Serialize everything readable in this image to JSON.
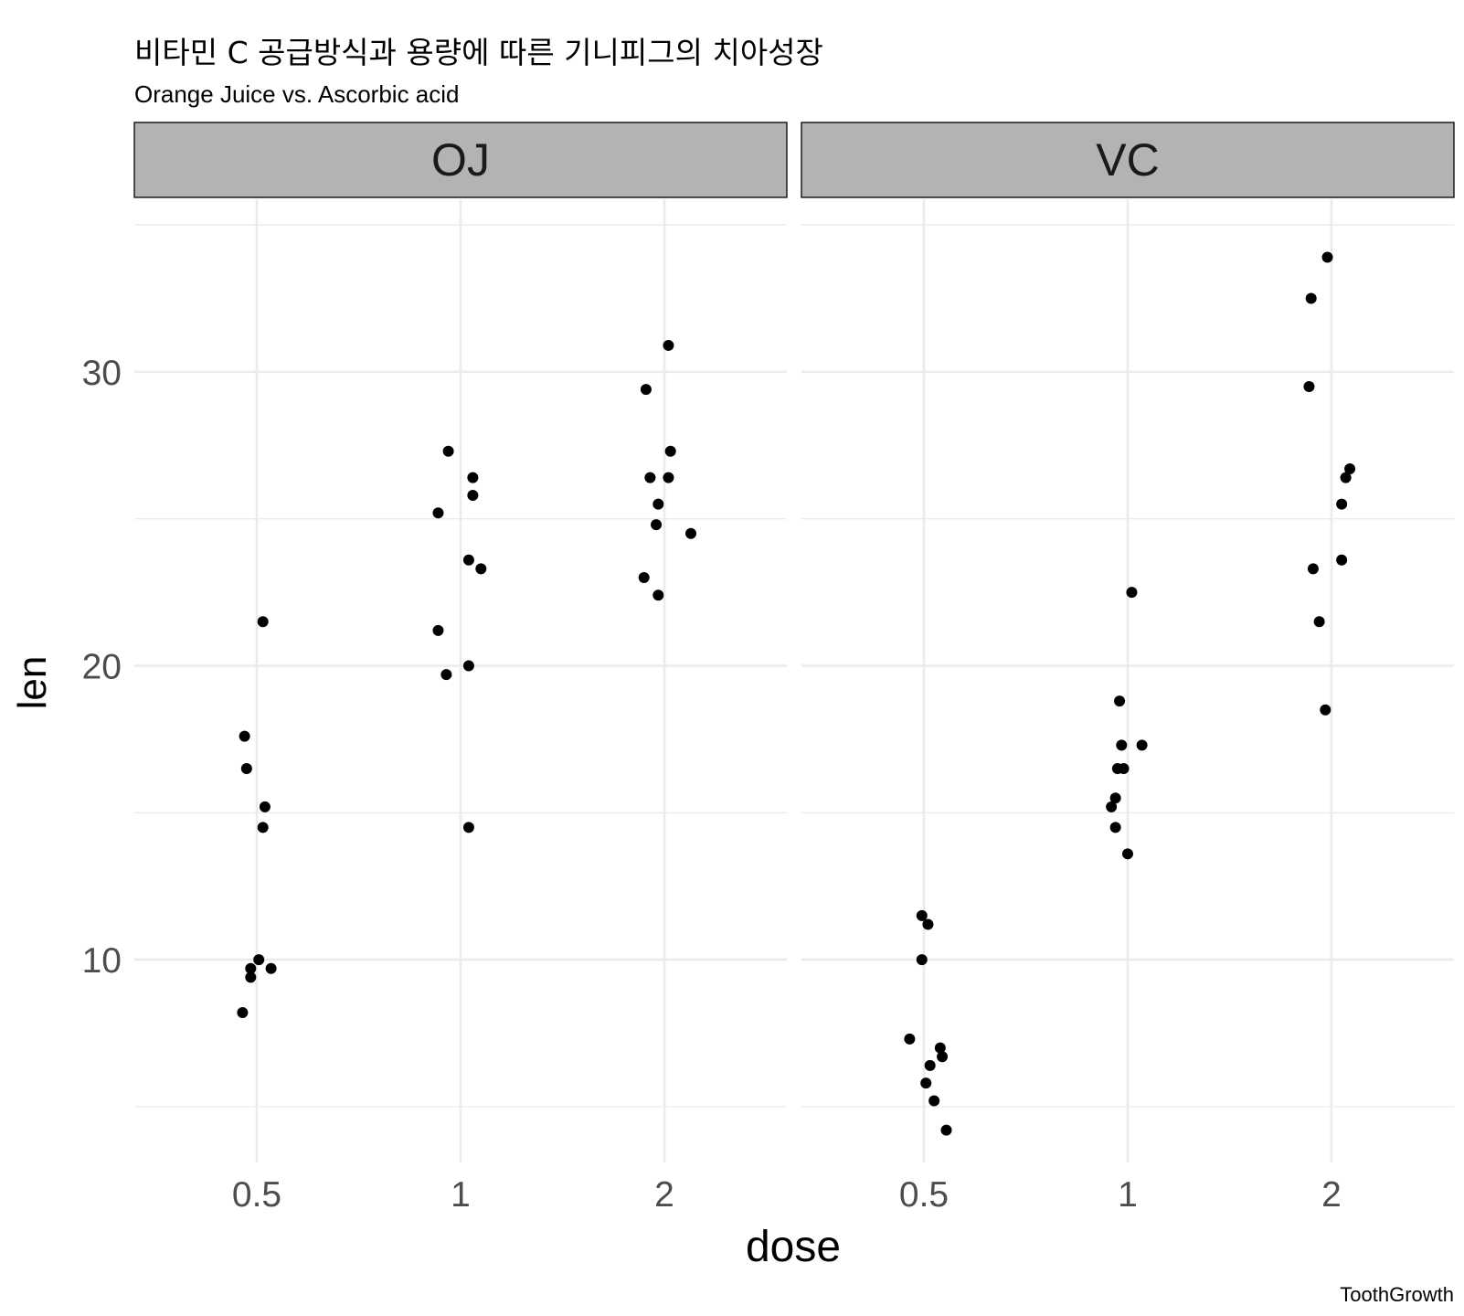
{
  "chart_data": {
    "type": "scatter",
    "title": "비타민 C 공급방식과 용량에 따른 기니피그의 치아성장",
    "subtitle": "Orange Juice vs. Ascorbic acid",
    "caption": "ToothGrowth",
    "xlabel": "dose",
    "ylabel": "len",
    "x_categories": [
      "0.5",
      "1",
      "2"
    ],
    "y_ticks": [
      10,
      20,
      30
    ],
    "ylim": [
      3.1,
      35.5
    ],
    "grid": true,
    "legend": "none",
    "panel_background": "#ffffff",
    "strip_fill": "#b3b3b3",
    "point_color": "#000000",
    "grid_color": "#ebebeb",
    "facets": [
      {
        "label": "OJ",
        "points": [
          {
            "x": 0.43,
            "y": 8.2
          },
          {
            "x": 0.44,
            "y": 17.6
          },
          {
            "x": 0.45,
            "y": 16.5
          },
          {
            "x": 0.47,
            "y": 9.7
          },
          {
            "x": 0.47,
            "y": 9.4
          },
          {
            "x": 0.51,
            "y": 10.0
          },
          {
            "x": 0.53,
            "y": 14.5
          },
          {
            "x": 0.53,
            "y": 21.5
          },
          {
            "x": 0.54,
            "y": 15.2
          },
          {
            "x": 0.57,
            "y": 9.7
          },
          {
            "x": 0.89,
            "y": 25.2
          },
          {
            "x": 0.89,
            "y": 21.2
          },
          {
            "x": 0.93,
            "y": 19.7
          },
          {
            "x": 0.94,
            "y": 27.3
          },
          {
            "x": 1.04,
            "y": 23.6
          },
          {
            "x": 1.04,
            "y": 20.0
          },
          {
            "x": 1.04,
            "y": 14.5
          },
          {
            "x": 1.06,
            "y": 26.4
          },
          {
            "x": 1.06,
            "y": 25.8
          },
          {
            "x": 1.1,
            "y": 23.3
          },
          {
            "x": 1.9,
            "y": 23.0
          },
          {
            "x": 1.91,
            "y": 29.4
          },
          {
            "x": 1.93,
            "y": 26.4
          },
          {
            "x": 1.96,
            "y": 24.8
          },
          {
            "x": 1.97,
            "y": 22.4
          },
          {
            "x": 1.97,
            "y": 25.5
          },
          {
            "x": 2.02,
            "y": 26.4
          },
          {
            "x": 2.02,
            "y": 30.9
          },
          {
            "x": 2.03,
            "y": 27.3
          },
          {
            "x": 2.13,
            "y": 24.5
          }
        ]
      },
      {
        "label": "VC",
        "points": [
          {
            "x": 0.43,
            "y": 7.3
          },
          {
            "x": 0.49,
            "y": 11.5
          },
          {
            "x": 0.49,
            "y": 10.0
          },
          {
            "x": 0.51,
            "y": 5.8
          },
          {
            "x": 0.52,
            "y": 11.2
          },
          {
            "x": 0.53,
            "y": 6.4
          },
          {
            "x": 0.55,
            "y": 5.2
          },
          {
            "x": 0.58,
            "y": 7.0
          },
          {
            "x": 0.59,
            "y": 6.7
          },
          {
            "x": 0.61,
            "y": 4.2
          },
          {
            "x": 0.92,
            "y": 15.2
          },
          {
            "x": 0.94,
            "y": 15.5
          },
          {
            "x": 0.94,
            "y": 14.5
          },
          {
            "x": 0.95,
            "y": 16.5
          },
          {
            "x": 0.96,
            "y": 18.8
          },
          {
            "x": 0.97,
            "y": 17.3
          },
          {
            "x": 0.98,
            "y": 16.5
          },
          {
            "x": 1.0,
            "y": 13.6
          },
          {
            "x": 1.02,
            "y": 22.5
          },
          {
            "x": 1.07,
            "y": 17.3
          },
          {
            "x": 1.89,
            "y": 29.5
          },
          {
            "x": 1.9,
            "y": 32.5
          },
          {
            "x": 1.91,
            "y": 23.3
          },
          {
            "x": 1.94,
            "y": 21.5
          },
          {
            "x": 1.97,
            "y": 18.5
          },
          {
            "x": 1.98,
            "y": 33.9
          },
          {
            "x": 2.05,
            "y": 25.5
          },
          {
            "x": 2.05,
            "y": 23.6
          },
          {
            "x": 2.07,
            "y": 26.4
          },
          {
            "x": 2.09,
            "y": 26.7
          }
        ]
      }
    ]
  }
}
